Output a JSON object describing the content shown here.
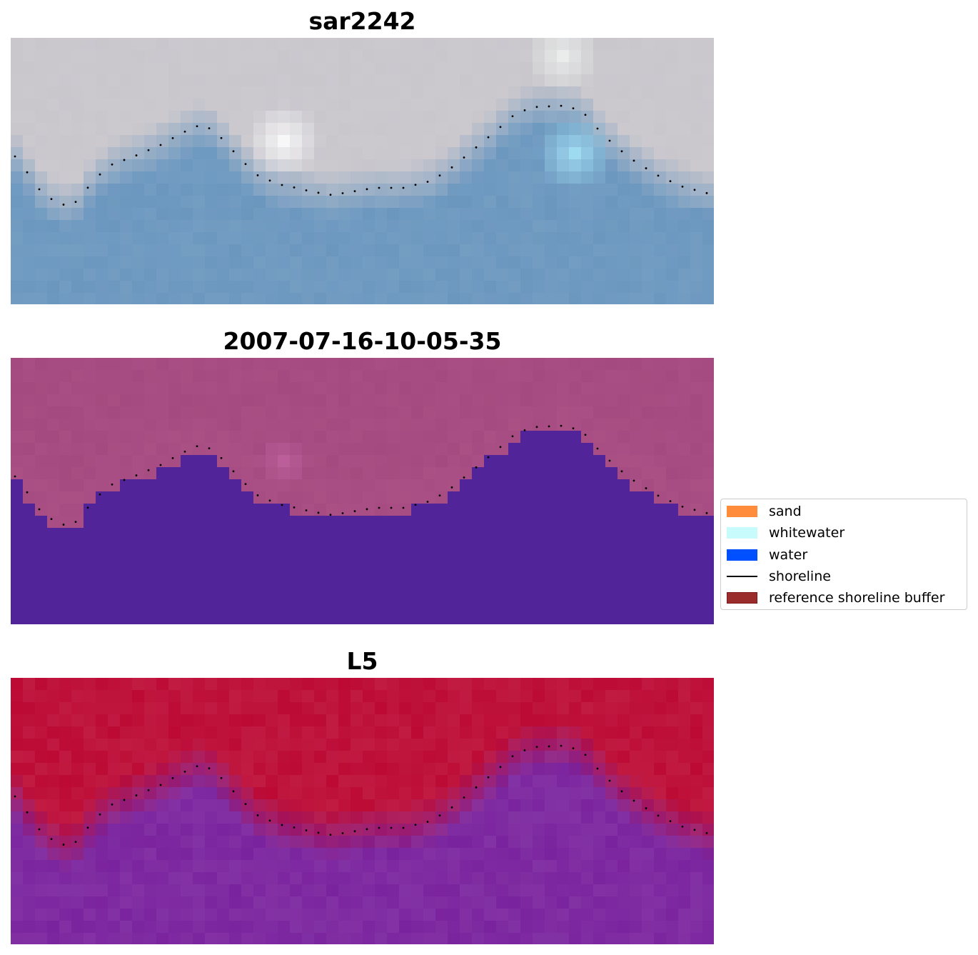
{
  "panels": [
    {
      "title": "sar2242",
      "style": "rgb"
    },
    {
      "title": "2007-07-16-10-05-35",
      "style": "classified"
    },
    {
      "title": "L5",
      "style": "index"
    }
  ],
  "legend": {
    "items": [
      {
        "label": "sand",
        "color": "#ff8c3b",
        "kind": "patch"
      },
      {
        "label": "whitewater",
        "color": "#c8fcfc",
        "kind": "patch"
      },
      {
        "label": "water",
        "color": "#0050ff",
        "kind": "patch"
      },
      {
        "label": "shoreline",
        "color": "#000000",
        "kind": "line"
      },
      {
        "label": "reference shoreline buffer",
        "color": "#9b2c2c",
        "kind": "patch"
      }
    ]
  },
  "colors": {
    "rgb_land": "#c9c6cc",
    "rgb_water": "#6b97bf",
    "class_land": "#a44a80",
    "class_water": "#52249a",
    "index_land": "#bc0a34",
    "index_water": "#7a239e",
    "shoreline": "#000000"
  }
}
